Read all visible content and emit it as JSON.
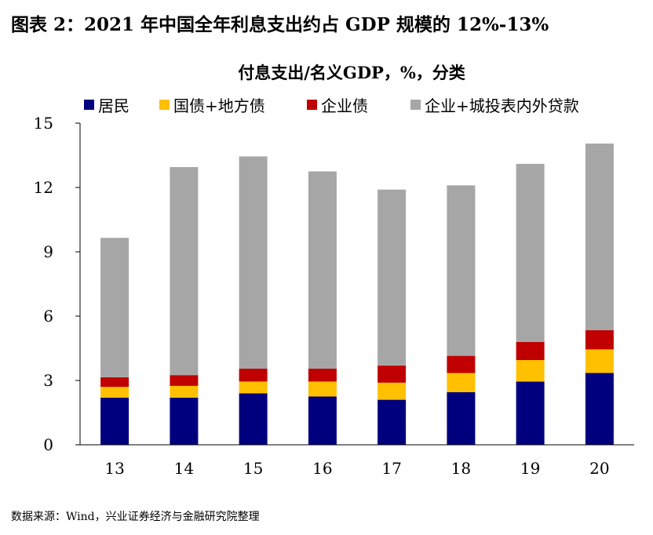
{
  "figure": {
    "title": "图表 2：2021 年中国全年利息支出约占 GDP 规模的 12%-13%",
    "source": "数据来源：Wind，兴业证券经济与金融研究院整理"
  },
  "chart_data": {
    "type": "bar",
    "stacked": true,
    "title": "付息支出/名义GDP，%，分类",
    "xlabel": "",
    "ylabel": "",
    "categories": [
      "13",
      "14",
      "15",
      "16",
      "17",
      "18",
      "19",
      "20"
    ],
    "ylim": [
      0,
      15
    ],
    "yticks": [
      "0",
      "3",
      "6",
      "9",
      "12",
      "15"
    ],
    "grid": false,
    "legend_position": "top",
    "series": [
      {
        "name": "居民",
        "color": "#00007f",
        "values": [
          2.2,
          2.2,
          2.4,
          2.25,
          2.1,
          2.45,
          2.95,
          3.35
        ]
      },
      {
        "name": "国债+地方债",
        "color": "#ffc000",
        "values": [
          0.5,
          0.55,
          0.55,
          0.7,
          0.8,
          0.9,
          1.0,
          1.1
        ]
      },
      {
        "name": "企业债",
        "color": "#c00000",
        "values": [
          0.45,
          0.5,
          0.6,
          0.6,
          0.8,
          0.8,
          0.85,
          0.9
        ]
      },
      {
        "name": "企业+城投表内外贷款",
        "color": "#a6a6a6",
        "values": [
          6.5,
          9.7,
          9.9,
          9.2,
          8.2,
          7.95,
          8.3,
          8.7
        ]
      }
    ]
  }
}
